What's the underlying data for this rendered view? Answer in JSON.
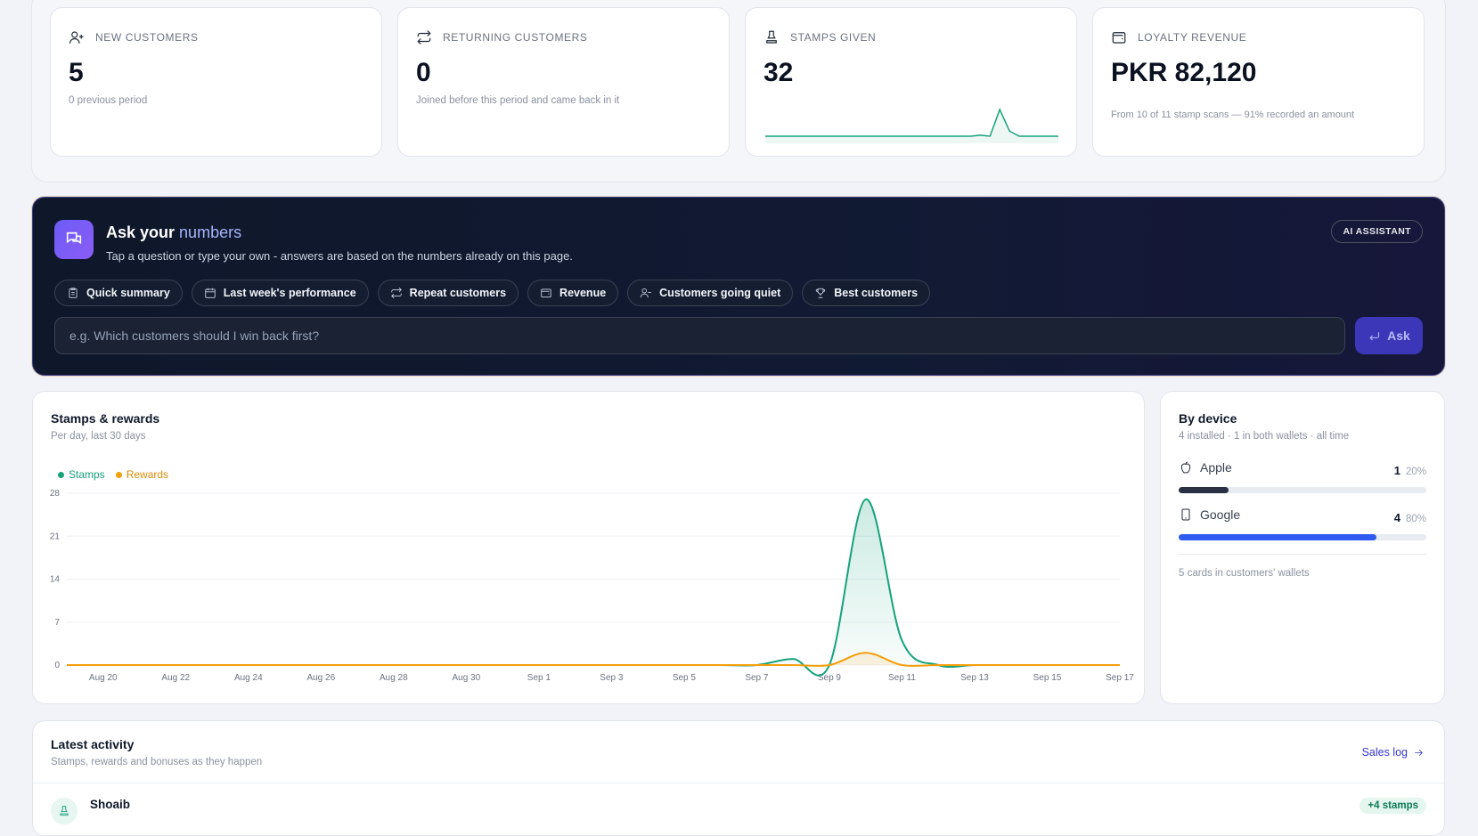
{
  "kpis": [
    {
      "label": "NEW CUSTOMERS",
      "icon": "user-plus-icon",
      "value": "5",
      "sub": "0 previous period"
    },
    {
      "label": "RETURNING CUSTOMERS",
      "icon": "repeat-icon",
      "value": "0",
      "sub": "Joined before this period and came back in it"
    },
    {
      "label": "STAMPS GIVEN",
      "icon": "stamp-icon",
      "value": "32",
      "sparkline": [
        0,
        0,
        0,
        0,
        0,
        0,
        0,
        0,
        0,
        0,
        0,
        0,
        0,
        0,
        0,
        0,
        0,
        0,
        0,
        0,
        0,
        0,
        1,
        0,
        26,
        5,
        0,
        0,
        0,
        0,
        0
      ]
    },
    {
      "label": "LOYALTY REVENUE",
      "icon": "wallet-icon",
      "value": "PKR 82,120",
      "sub": "From 10 of 11 stamp scans — 91% recorded an amount"
    }
  ],
  "assistant": {
    "title_start": "Ask your",
    "title_accent": "numbers",
    "description": "Tap a question or type your own - answers are based on the numbers already on this page.",
    "badge": "AI ASSISTANT",
    "chips": [
      {
        "label": "Quick summary",
        "icon": "clipboard-icon"
      },
      {
        "label": "Last week's performance",
        "icon": "calendar-icon"
      },
      {
        "label": "Repeat customers",
        "icon": "repeat-icon"
      },
      {
        "label": "Revenue",
        "icon": "wallet-icon"
      },
      {
        "label": "Customers going quiet",
        "icon": "user-minus-icon"
      },
      {
        "label": "Best customers",
        "icon": "trophy-icon"
      }
    ],
    "input_placeholder": "e.g. Which customers should I win back first?",
    "ask_label": "Ask"
  },
  "stamps_chart": {
    "title": "Stamps & rewards",
    "subtitle": "Per day, last 30 days",
    "legend": [
      {
        "name": "Stamps",
        "color": "#16a37a"
      },
      {
        "name": "Rewards",
        "color": "#f59e0b"
      }
    ]
  },
  "chart_data": {
    "type": "area",
    "x": [
      "Aug 19",
      "Aug 20",
      "Aug 21",
      "Aug 22",
      "Aug 23",
      "Aug 24",
      "Aug 25",
      "Aug 26",
      "Aug 27",
      "Aug 28",
      "Aug 29",
      "Aug 30",
      "Aug 31",
      "Sep 1",
      "Sep 2",
      "Sep 3",
      "Sep 4",
      "Sep 5",
      "Sep 6",
      "Sep 7",
      "Sep 8",
      "Sep 9",
      "Sep 10",
      "Sep 11",
      "Sep 12",
      "Sep 13",
      "Sep 14",
      "Sep 15",
      "Sep 16",
      "Sep 17"
    ],
    "x_ticks": [
      "Aug 20",
      "Aug 22",
      "Aug 24",
      "Aug 26",
      "Aug 28",
      "Aug 30",
      "Sep 1",
      "Sep 3",
      "Sep 5",
      "Sep 7",
      "Sep 9",
      "Sep 11",
      "Sep 13",
      "Sep 15",
      "Sep 17"
    ],
    "series": [
      {
        "name": "Stamps",
        "color": "#16a37a",
        "values": [
          0,
          0,
          0,
          0,
          0,
          0,
          0,
          0,
          0,
          0,
          0,
          0,
          0,
          0,
          0,
          0,
          0,
          0,
          0,
          0,
          1,
          0,
          27,
          4,
          0,
          0,
          0,
          0,
          0,
          0
        ]
      },
      {
        "name": "Rewards",
        "color": "#f59e0b",
        "values": [
          0,
          0,
          0,
          0,
          0,
          0,
          0,
          0,
          0,
          0,
          0,
          0,
          0,
          0,
          0,
          0,
          0,
          0,
          0,
          0,
          0,
          0,
          2,
          0,
          0,
          0,
          0,
          0,
          0,
          0
        ]
      }
    ],
    "y_ticks": [
      "0",
      "7",
      "14",
      "21",
      "28"
    ],
    "ylim": [
      0,
      28
    ],
    "grid": true,
    "legend_position": "top-left"
  },
  "device": {
    "title": "By device",
    "subtitle": "4 installed · 1 in both wallets · all time",
    "rows": [
      {
        "label": "Apple",
        "icon": "apple-icon",
        "count": "1",
        "pct": "20%",
        "fraction": 0.2,
        "color": "#2b3145"
      },
      {
        "label": "Google",
        "icon": "phone-icon",
        "count": "4",
        "pct": "80%",
        "fraction": 0.8,
        "color": "#2f5bf0"
      }
    ],
    "footer": "5 cards in customers' wallets"
  },
  "activity": {
    "title": "Latest activity",
    "subtitle": "Stamps, rewards and bonuses as they happen",
    "link_label": "Sales log",
    "first_item": {
      "name": "Shoaib",
      "badge": "+4 stamps"
    }
  }
}
